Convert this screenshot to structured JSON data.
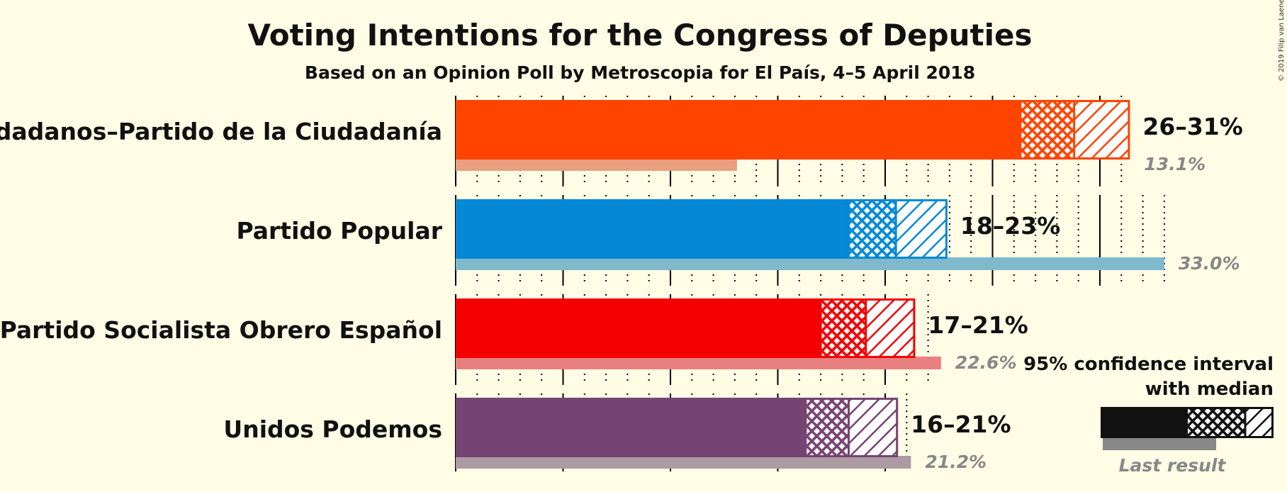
{
  "chart_data": {
    "type": "bar",
    "title": "Voting Intentions for the Congress of Deputies",
    "subtitle": "Based on an Opinion Poll by Metroscopia for El País, 4–5 April 2018",
    "copyright": "© 2019 Filip van Laenen",
    "xlim": [
      0,
      35
    ],
    "parties": [
      {
        "name": "Ciudadanos–Partido de la Ciudadanía",
        "color": "#ff4400",
        "last_color": "#e8a07e",
        "ci_low": 26.3,
        "median": 28.8,
        "ci_high": 31.4,
        "range_label": "26–31%",
        "last_result": 13.1,
        "last_label": "13.1%"
      },
      {
        "name": "Partido Popular",
        "color": "#0589d6",
        "last_color": "#80b9cc",
        "ci_low": 18.3,
        "median": 20.5,
        "ci_high": 22.9,
        "range_label": "18–23%",
        "last_result": 33.0,
        "last_label": "33.0%"
      },
      {
        "name": "Partido Socialista Obrero Español",
        "color": "#f40000",
        "last_color": "#e88080",
        "ci_low": 17.0,
        "median": 19.1,
        "ci_high": 21.4,
        "range_label": "17–21%",
        "last_result": 22.6,
        "last_label": "22.6%"
      },
      {
        "name": "Unidos Podemos",
        "color": "#764473",
        "last_color": "#ad9ba4",
        "ci_low": 16.3,
        "median": 18.3,
        "ci_high": 20.6,
        "range_label": "16–21%",
        "last_result": 21.2,
        "last_label": "21.2%"
      }
    ],
    "legend": {
      "line1": "95% confidence interval",
      "line2": "with median",
      "last": "Last result"
    }
  }
}
